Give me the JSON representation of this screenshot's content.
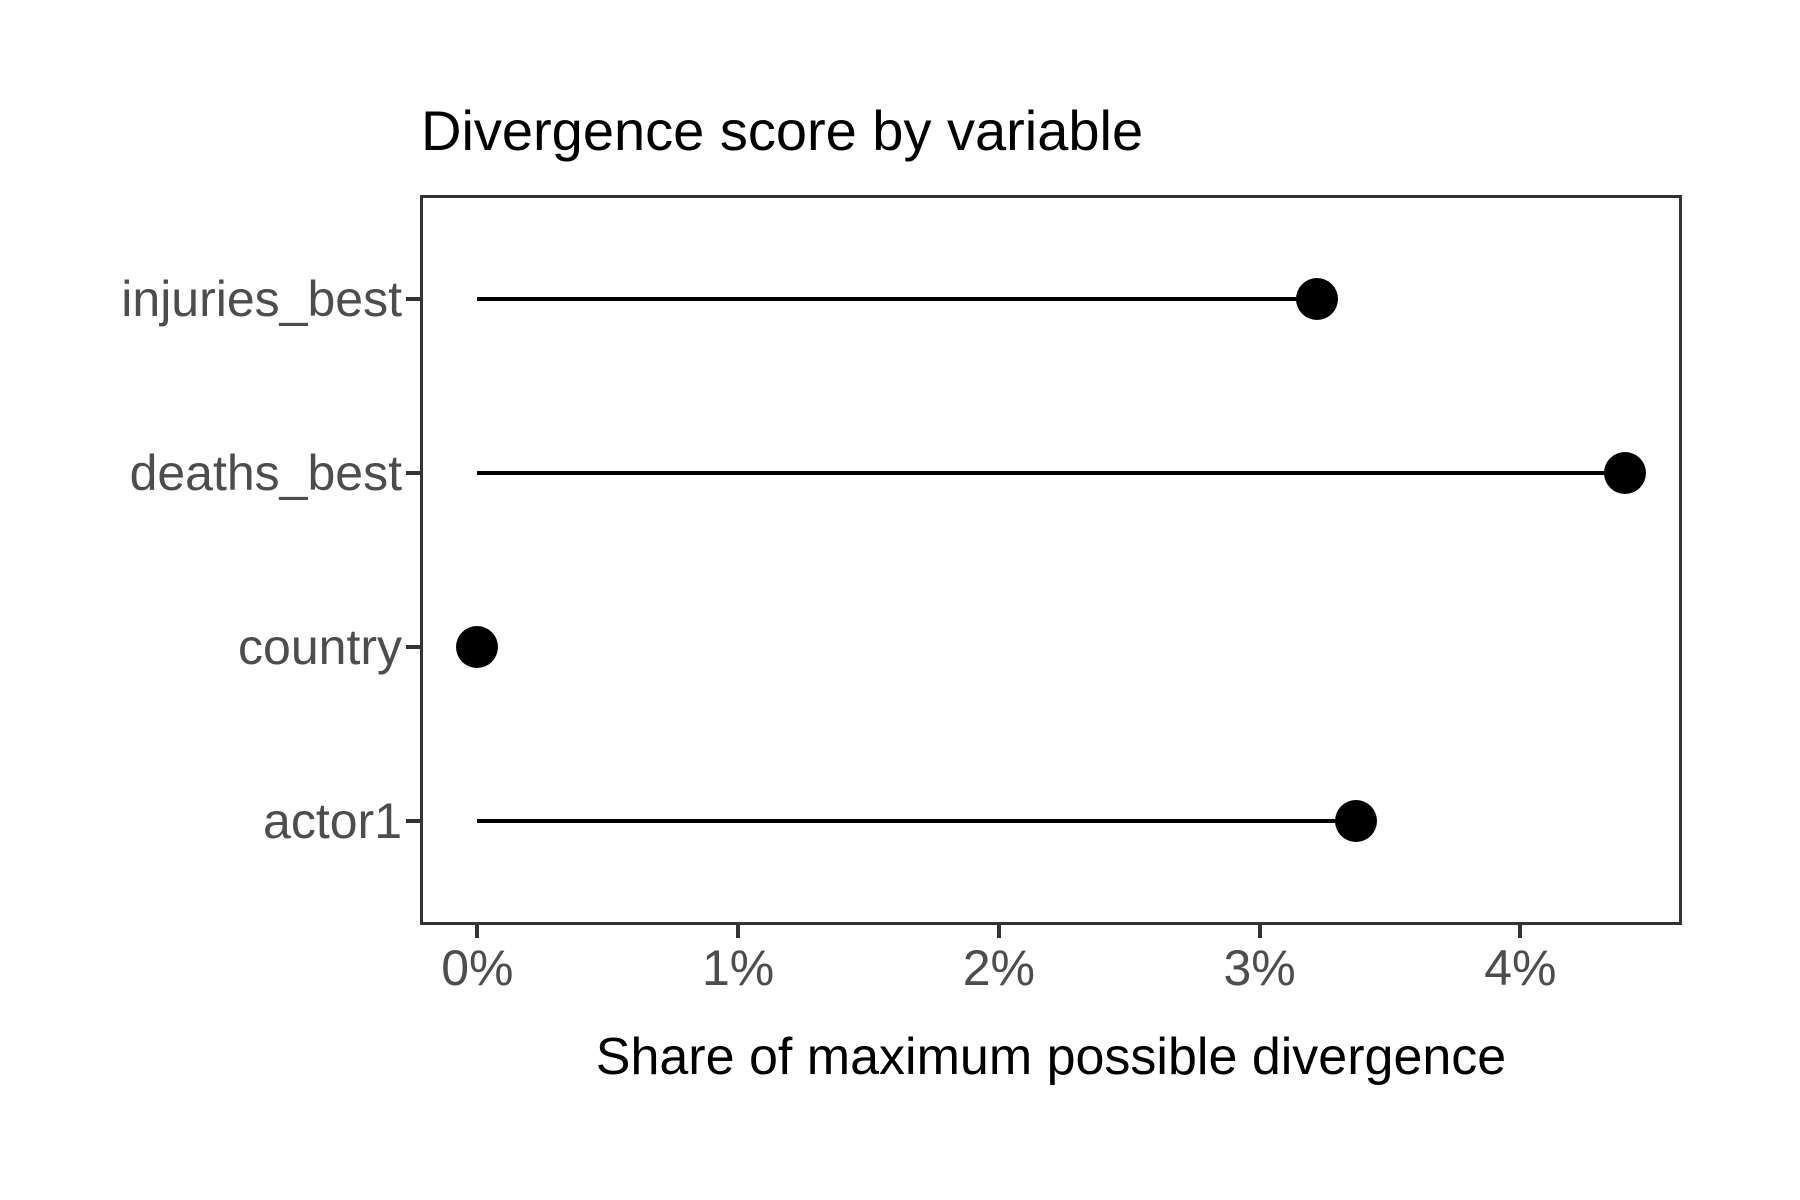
{
  "chart_data": {
    "type": "lollipop",
    "orientation": "horizontal",
    "title": "Divergence score by variable",
    "xlabel": "Share of maximum possible divergence",
    "ylabel": "",
    "categories": [
      "injuries_best",
      "deaths_best",
      "country",
      "actor1"
    ],
    "values_pct": [
      3.22,
      4.4,
      0,
      3.37
    ],
    "x_ticks_pct": [
      0,
      1,
      2,
      3,
      4
    ],
    "x_tick_labels": [
      "0%",
      "1%",
      "2%",
      "3%",
      "4%"
    ],
    "xlim_pct": [
      -0.22,
      4.62
    ],
    "grid": false,
    "legend": false,
    "colors": {
      "point": "#000000",
      "stem": "#000000",
      "panel_border": "#333333",
      "axis_text": "#4D4D4D",
      "title_text": "#000000",
      "background": "#FFFFFF"
    }
  }
}
